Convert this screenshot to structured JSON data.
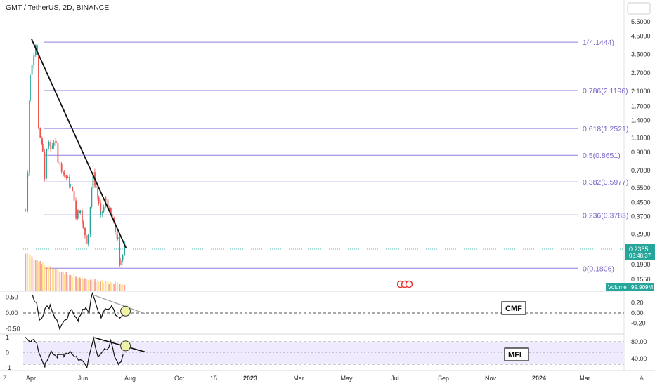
{
  "header": {
    "title": "GMT / TetherUS, 2D, BINANCE"
  },
  "price_axis": {
    "ticks": [
      "5.5000",
      "4.5000",
      "3.5000",
      "2.7000",
      "2.1000",
      "1.7000",
      "1.4000",
      "1.1000",
      "0.9000",
      "0.7000",
      "0.5500",
      "0.4500",
      "0.3700",
      "0.2900",
      "0.1900",
      "0.1550"
    ]
  },
  "current_price": {
    "value": "0.2355",
    "countdown": "03:48:37"
  },
  "volume_badge": {
    "label": "Volume",
    "value": "99.909M"
  },
  "cmf_axis": {
    "ticks": [
      "0.50",
      "0.00",
      "-0.50"
    ],
    "right_ticks": [
      "0.20",
      "0.00",
      "-0.20"
    ],
    "label": "CMF"
  },
  "mfi_axis": {
    "ticks": [
      "1",
      "0",
      "-1"
    ],
    "right_ticks": [
      "80.00",
      "40.00"
    ],
    "label": "MFI"
  },
  "time_axis": {
    "labels": [
      "Apr",
      "Jun",
      "Aug",
      "Oct",
      "15",
      "2023",
      "Mar",
      "May",
      "Jul",
      "Sep",
      "Nov",
      "2024",
      "Mar"
    ],
    "corner_left": "Z",
    "corner_right": "A"
  },
  "chart_data": {
    "type": "candlestick",
    "title": "GMT / TetherUS, 2D, BINANCE",
    "y_scale": "log",
    "ylim": [
      0.13,
      6.0
    ],
    "fib_levels": [
      {
        "label": "1(4.1444)",
        "value": 4.1444
      },
      {
        "label": "0.786(2.1196)",
        "value": 2.1196
      },
      {
        "label": "0.618(1.2521)",
        "value": 1.2521
      },
      {
        "label": "0.5(0.8651)",
        "value": 0.8651
      },
      {
        "label": "0.382(0.5977)",
        "value": 0.5977
      },
      {
        "label": "0.236(0.3783)",
        "value": 0.3783
      },
      {
        "label": "0(0.1806)",
        "value": 0.1806
      }
    ],
    "price_path": [
      [
        "2022-03-10",
        0.4
      ],
      [
        "2022-03-20",
        0.7
      ],
      [
        "2022-04-01",
        2.6
      ],
      [
        "2022-04-10",
        3.0
      ],
      [
        "2022-04-20",
        3.6
      ],
      [
        "2022-04-28",
        4.1
      ],
      [
        "2022-05-05",
        3.4
      ],
      [
        "2022-05-12",
        1.2
      ],
      [
        "2022-05-20",
        1.1
      ],
      [
        "2022-06-01",
        0.95
      ],
      [
        "2022-06-10",
        0.62
      ],
      [
        "2022-06-20",
        0.95
      ],
      [
        "2022-07-01",
        1.0
      ],
      [
        "2022-07-10",
        0.95
      ],
      [
        "2022-07-25",
        1.05
      ],
      [
        "2022-08-05",
        1.0
      ],
      [
        "2022-08-15",
        0.8
      ],
      [
        "2022-09-01",
        0.72
      ],
      [
        "2022-09-15",
        0.66
      ],
      [
        "2022-10-01",
        0.62
      ],
      [
        "2022-10-15",
        0.55
      ],
      [
        "2022-11-01",
        0.48
      ],
      [
        "2022-11-10",
        0.36
      ],
      [
        "2022-11-20",
        0.41
      ],
      [
        "2022-12-01",
        0.4
      ],
      [
        "2022-12-15",
        0.33
      ],
      [
        "2022-12-30",
        0.25
      ],
      [
        "2023-01-10",
        0.3
      ],
      [
        "2023-01-25",
        0.55
      ],
      [
        "2023-02-01",
        0.66
      ],
      [
        "2023-02-15",
        0.55
      ],
      [
        "2023-03-01",
        0.45
      ],
      [
        "2023-03-10",
        0.37
      ],
      [
        "2023-03-25",
        0.42
      ],
      [
        "2023-04-05",
        0.47
      ],
      [
        "2023-04-20",
        0.4
      ],
      [
        "2023-05-05",
        0.36
      ],
      [
        "2023-05-20",
        0.3
      ],
      [
        "2023-06-01",
        0.27
      ],
      [
        "2023-06-12",
        0.19
      ],
      [
        "2023-06-25",
        0.22
      ],
      [
        "2023-07-05",
        0.25
      ],
      [
        "2023-07-10",
        0.2355
      ]
    ],
    "trendline": {
      "start": [
        "2022-04-10",
        4.35
      ],
      "end": [
        "2023-07-14",
        0.24
      ]
    },
    "cmf_series": [
      [
        "2022-04-15",
        0.5
      ],
      [
        "2022-05-05",
        0.35
      ],
      [
        "2022-05-20",
        -0.2
      ],
      [
        "2022-06-15",
        0.1
      ],
      [
        "2022-07-10",
        0.25
      ],
      [
        "2022-08-01",
        -0.1
      ],
      [
        "2022-08-25",
        -0.45
      ],
      [
        "2022-09-20",
        -0.3
      ],
      [
        "2022-10-25",
        0.1
      ],
      [
        "2022-11-25",
        -0.2
      ],
      [
        "2022-12-30",
        0.2
      ],
      [
        "2023-01-15",
        0.05
      ],
      [
        "2023-02-01",
        0.6
      ],
      [
        "2023-02-20",
        0.2
      ],
      [
        "2023-03-15",
        -0.1
      ],
      [
        "2023-04-10",
        0.1
      ],
      [
        "2023-05-05",
        0.22
      ],
      [
        "2023-05-25",
        0.0
      ],
      [
        "2023-06-15",
        -0.2
      ],
      [
        "2023-07-10",
        0.05
      ]
    ],
    "mfi_series": [
      [
        "2022-03-10",
        1.0
      ],
      [
        "2022-04-10",
        0.85
      ],
      [
        "2022-05-05",
        0.55
      ],
      [
        "2022-05-25",
        -0.4
      ],
      [
        "2022-06-15",
        -0.85
      ],
      [
        "2022-07-15",
        0.2
      ],
      [
        "2022-08-15",
        -0.3
      ],
      [
        "2022-09-15",
        -0.1
      ],
      [
        "2022-10-15",
        0.1
      ],
      [
        "2022-11-15",
        -0.3
      ],
      [
        "2022-12-15",
        -0.6
      ],
      [
        "2023-01-05",
        -0.85
      ],
      [
        "2023-01-25",
        0.3
      ],
      [
        "2023-02-05",
        1.05
      ],
      [
        "2023-03-01",
        -0.2
      ],
      [
        "2023-04-01",
        0.1
      ],
      [
        "2023-05-01",
        0.7
      ],
      [
        "2023-05-20",
        -0.4
      ],
      [
        "2023-06-10",
        -0.85
      ],
      [
        "2023-07-10",
        0.35
      ]
    ]
  }
}
